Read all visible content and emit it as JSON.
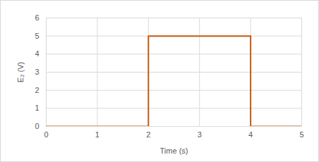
{
  "chart_data": {
    "type": "line",
    "x": [
      0,
      2,
      2,
      4,
      4,
      5
    ],
    "values": [
      0,
      0,
      5,
      5,
      0,
      0
    ],
    "color": "#c55a11",
    "xlabel": "Time (s)",
    "ylabel": "E₂ (V)",
    "xlim": [
      0,
      5
    ],
    "xticks": [
      0,
      1,
      2,
      3,
      4,
      5
    ],
    "ylim": [
      0,
      6
    ],
    "yticks": [
      0,
      1,
      2,
      3,
      4,
      5,
      6
    ],
    "grid": true
  }
}
